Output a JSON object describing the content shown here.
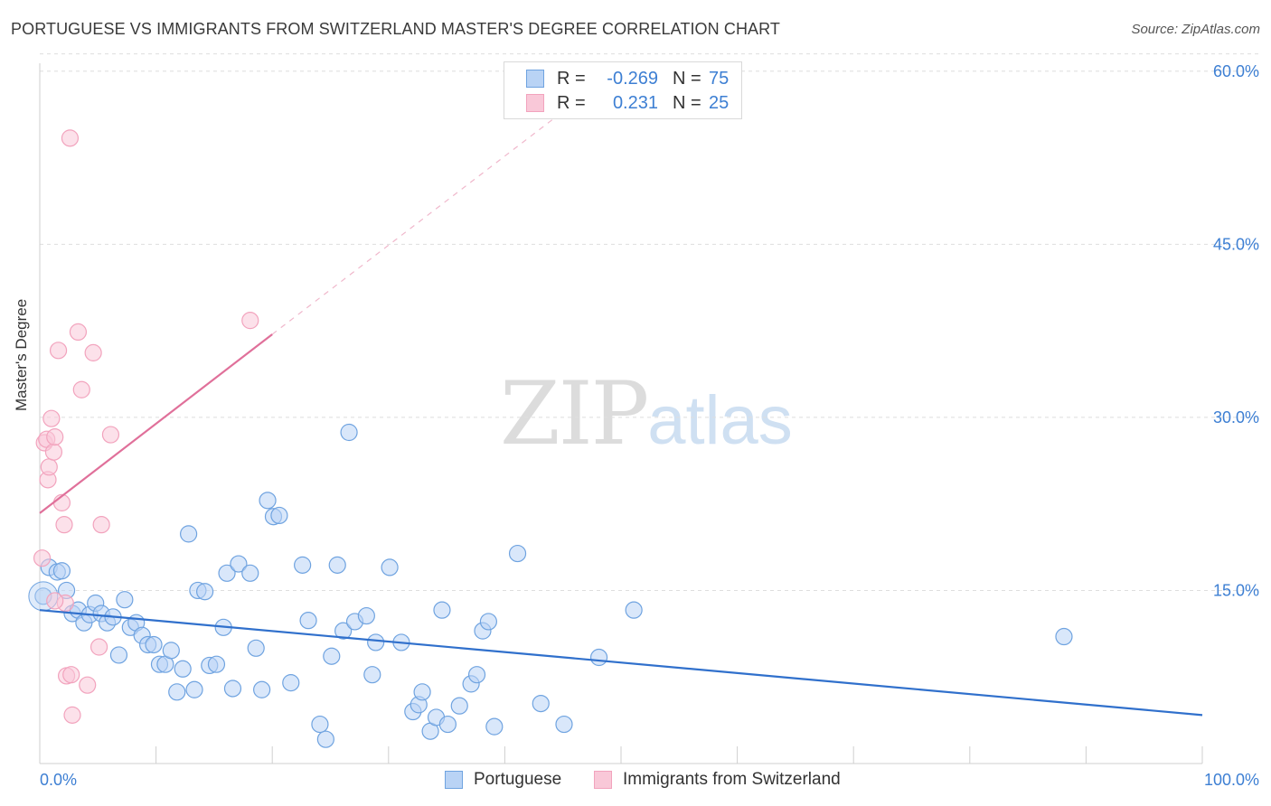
{
  "header": {
    "title": "PORTUGUESE VS IMMIGRANTS FROM SWITZERLAND MASTER'S DEGREE CORRELATION CHART",
    "source": "Source: ZipAtlas.com"
  },
  "watermark": {
    "zip": "ZIP",
    "atlas": "atlas"
  },
  "legend": {
    "rows": [
      {
        "r_label": "R =",
        "r_value": "-0.269",
        "n_label": "N =",
        "n_value": "75"
      },
      {
        "r_label": "R =",
        "r_value": "0.231",
        "n_label": "N =",
        "n_value": "25"
      }
    ]
  },
  "bottom_legend": {
    "series1": "Portuguese",
    "series2": "Immigrants from Switzerland"
  },
  "chart_data": {
    "type": "scatter",
    "title": "PORTUGUESE VS IMMIGRANTS FROM SWITZERLAND MASTER'S DEGREE CORRELATION CHART",
    "xlabel": "",
    "ylabel": "Master's Degree",
    "xlim": [
      0,
      100
    ],
    "ylim": [
      0,
      65
    ],
    "x_tick_labels": [
      "0.0%",
      "100.0%"
    ],
    "y_ticks": [
      15,
      30,
      45,
      60
    ],
    "y_tick_labels": [
      "15.0%",
      "30.0%",
      "45.0%",
      "60.0%"
    ],
    "grid": true,
    "legend_position": "top-center",
    "colors": {
      "portuguese": "#6fa3e0",
      "portuguese_line": "#3070cc",
      "swiss": "#f2a3bd",
      "swiss_line": "#e0709a",
      "tick_label": "#3d7fd3"
    },
    "series": [
      {
        "name": "Portuguese",
        "r": -0.269,
        "n": 75,
        "points": [
          [
            0.3,
            14.5
          ],
          [
            0.8,
            17.0
          ],
          [
            1.5,
            16.6
          ],
          [
            1.9,
            16.7
          ],
          [
            2.3,
            15.0
          ],
          [
            2.8,
            13.0
          ],
          [
            3.3,
            13.3
          ],
          [
            3.8,
            12.2
          ],
          [
            4.3,
            12.9
          ],
          [
            4.8,
            13.9
          ],
          [
            5.3,
            13.0
          ],
          [
            5.8,
            12.2
          ],
          [
            6.3,
            12.7
          ],
          [
            6.8,
            9.4
          ],
          [
            7.3,
            14.2
          ],
          [
            7.8,
            11.8
          ],
          [
            8.3,
            12.2
          ],
          [
            8.8,
            11.1
          ],
          [
            9.3,
            10.3
          ],
          [
            9.8,
            10.3
          ],
          [
            10.3,
            8.6
          ],
          [
            10.8,
            8.6
          ],
          [
            11.3,
            9.8
          ],
          [
            11.8,
            6.2
          ],
          [
            12.3,
            8.2
          ],
          [
            12.8,
            19.9
          ],
          [
            13.3,
            6.4
          ],
          [
            13.6,
            15.0
          ],
          [
            14.2,
            14.9
          ],
          [
            14.6,
            8.5
          ],
          [
            15.2,
            8.6
          ],
          [
            15.8,
            11.8
          ],
          [
            16.1,
            16.5
          ],
          [
            16.6,
            6.5
          ],
          [
            17.1,
            17.3
          ],
          [
            18.1,
            16.5
          ],
          [
            18.6,
            10.0
          ],
          [
            19.1,
            6.4
          ],
          [
            19.6,
            22.8
          ],
          [
            20.1,
            21.4
          ],
          [
            20.6,
            21.5
          ],
          [
            21.6,
            7.0
          ],
          [
            22.6,
            17.2
          ],
          [
            23.1,
            12.4
          ],
          [
            24.1,
            3.4
          ],
          [
            24.6,
            2.1
          ],
          [
            25.1,
            9.3
          ],
          [
            25.6,
            17.2
          ],
          [
            26.1,
            11.5
          ],
          [
            27.1,
            12.3
          ],
          [
            28.1,
            12.8
          ],
          [
            28.6,
            7.7
          ],
          [
            28.9,
            10.5
          ],
          [
            30.1,
            17.0
          ],
          [
            31.1,
            10.5
          ],
          [
            32.1,
            4.5
          ],
          [
            32.6,
            5.1
          ],
          [
            32.9,
            6.2
          ],
          [
            33.6,
            2.8
          ],
          [
            34.1,
            4.0
          ],
          [
            34.6,
            13.3
          ],
          [
            35.1,
            3.4
          ],
          [
            36.1,
            5.0
          ],
          [
            37.1,
            6.9
          ],
          [
            37.6,
            7.7
          ],
          [
            38.1,
            11.5
          ],
          [
            38.6,
            12.3
          ],
          [
            39.1,
            3.2
          ],
          [
            41.1,
            18.2
          ],
          [
            43.1,
            5.2
          ],
          [
            45.1,
            3.4
          ],
          [
            48.1,
            9.2
          ],
          [
            51.1,
            13.3
          ],
          [
            26.6,
            28.7
          ],
          [
            88.1,
            11.0
          ]
        ],
        "trend": {
          "x0": 0,
          "y0": 13.3,
          "x1": 100,
          "y1": 4.2
        }
      },
      {
        "name": "Immigrants from Switzerland",
        "r": 0.231,
        "n": 25,
        "points": [
          [
            0.2,
            17.8
          ],
          [
            0.4,
            27.8
          ],
          [
            0.6,
            28.1
          ],
          [
            0.7,
            24.6
          ],
          [
            0.8,
            25.7
          ],
          [
            1.0,
            29.9
          ],
          [
            1.2,
            27.0
          ],
          [
            1.3,
            28.3
          ],
          [
            1.6,
            35.8
          ],
          [
            1.9,
            22.6
          ],
          [
            2.1,
            20.7
          ],
          [
            2.2,
            13.9
          ],
          [
            2.3,
            7.6
          ],
          [
            2.6,
            54.2
          ],
          [
            2.7,
            7.7
          ],
          [
            2.8,
            4.2
          ],
          [
            3.3,
            37.4
          ],
          [
            3.6,
            32.4
          ],
          [
            4.1,
            6.8
          ],
          [
            4.6,
            35.6
          ],
          [
            5.1,
            10.1
          ],
          [
            5.3,
            20.7
          ],
          [
            6.1,
            28.5
          ],
          [
            18.1,
            38.4
          ],
          [
            1.3,
            14.1
          ]
        ],
        "trend": {
          "x0": 0,
          "y0": 21.7,
          "x1": 20,
          "y1": 37.2,
          "dash_x1": 45,
          "dash_y1": 56.5
        }
      }
    ]
  }
}
